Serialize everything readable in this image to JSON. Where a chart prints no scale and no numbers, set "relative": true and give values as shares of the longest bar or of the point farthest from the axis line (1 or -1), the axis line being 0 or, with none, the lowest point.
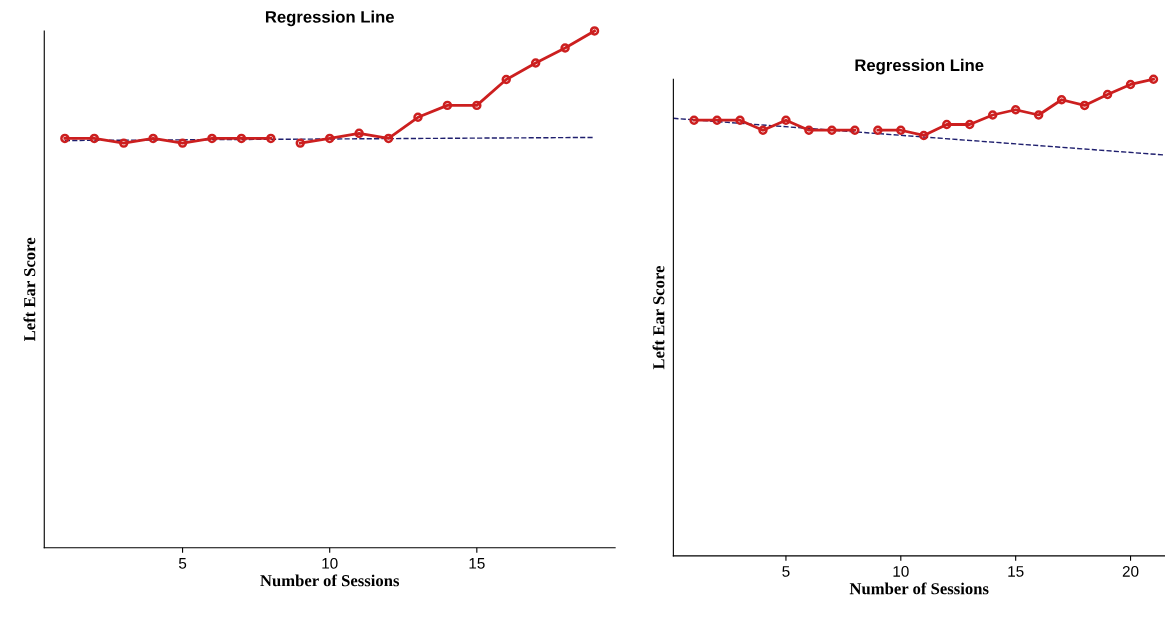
{
  "chart_data": [
    {
      "type": "line",
      "title": "Regression Line",
      "xlabel": "Number of Sessions",
      "ylabel": "Left Ear Score",
      "relative": true,
      "xlim": [
        0.3,
        19.7
      ],
      "xticks": [
        5,
        10,
        15
      ],
      "grid": false,
      "legend": false,
      "series": [
        {
          "color": "#1f1f6e",
          "x": [
            1,
            19
          ],
          "values": [
            0.788,
            0.794
          ],
          "marker": "none",
          "line_style": "dashed"
        },
        {
          "color": "#cc1f1f",
          "x": [
            1,
            2,
            3,
            4,
            5,
            6,
            7,
            8
          ],
          "values": [
            0.792,
            0.792,
            0.783,
            0.792,
            0.783,
            0.792,
            0.792,
            0.792
          ],
          "marker": "circle",
          "line_style": "solid"
        },
        {
          "color": "#cc1f1f",
          "x": [
            9,
            10,
            11,
            12,
            13,
            14,
            15,
            16,
            17,
            18,
            19
          ],
          "values": [
            0.783,
            0.792,
            0.802,
            0.792,
            0.833,
            0.856,
            0.856,
            0.906,
            0.938,
            0.967,
            1
          ],
          "marker": "circle",
          "line_style": "solid"
        }
      ]
    },
    {
      "type": "line",
      "title": "Regression Line",
      "xlabel": "Number of Sessions",
      "ylabel": "Left Ear Score",
      "relative": true,
      "xlim": [
        0.1,
        21.5
      ],
      "xticks": [
        5,
        10,
        15,
        20
      ],
      "grid": false,
      "legend": false,
      "series": [
        {
          "color": "#1f1f6e",
          "x": [
            0.1,
            21.5
          ],
          "values": [
            0.918,
            0.841
          ],
          "marker": "none",
          "line_style": "dashed"
        },
        {
          "color": "#cc1f1f",
          "x": [
            1,
            2,
            3,
            4,
            5,
            6,
            7,
            8
          ],
          "values": [
            0.914,
            0.914,
            0.914,
            0.893,
            0.914,
            0.893,
            0.893,
            0.893
          ],
          "marker": "circle",
          "line_style": "solid"
        },
        {
          "color": "#cc1f1f",
          "x": [
            9,
            10,
            11,
            12,
            13,
            14,
            15,
            16,
            17,
            18,
            19,
            20,
            21
          ],
          "values": [
            0.893,
            0.893,
            0.882,
            0.905,
            0.905,
            0.925,
            0.936,
            0.925,
            0.957,
            0.945,
            0.968,
            0.989,
            1
          ],
          "marker": "circle",
          "line_style": "solid"
        }
      ]
    }
  ]
}
